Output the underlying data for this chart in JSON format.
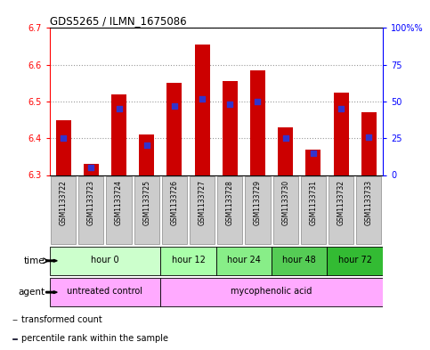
{
  "title": "GDS5265 / ILMN_1675086",
  "samples": [
    "GSM1133722",
    "GSM1133723",
    "GSM1133724",
    "GSM1133725",
    "GSM1133726",
    "GSM1133727",
    "GSM1133728",
    "GSM1133729",
    "GSM1133730",
    "GSM1133731",
    "GSM1133732",
    "GSM1133733"
  ],
  "transformed_counts": [
    6.45,
    6.33,
    6.52,
    6.41,
    6.55,
    6.655,
    6.555,
    6.585,
    6.43,
    6.37,
    6.525,
    6.47
  ],
  "percentile_ranks": [
    25,
    5,
    45,
    20,
    47,
    52,
    48,
    50,
    25,
    15,
    45,
    26
  ],
  "ylim_left": [
    6.3,
    6.7
  ],
  "ylim_right": [
    0,
    100
  ],
  "yticks_left": [
    6.3,
    6.4,
    6.5,
    6.6,
    6.7
  ],
  "yticks_right": [
    0,
    25,
    50,
    75,
    100
  ],
  "bar_color": "#cc0000",
  "blue_color": "#3333cc",
  "baseline": 6.3,
  "time_groups": [
    {
      "label": "hour 0",
      "start": 0,
      "end": 3,
      "color": "#ccffcc"
    },
    {
      "label": "hour 12",
      "start": 4,
      "end": 5,
      "color": "#aaffaa"
    },
    {
      "label": "hour 24",
      "start": 6,
      "end": 7,
      "color": "#88ee88"
    },
    {
      "label": "hour 48",
      "start": 8,
      "end": 9,
      "color": "#55cc55"
    },
    {
      "label": "hour 72",
      "start": 10,
      "end": 11,
      "color": "#33bb33"
    }
  ],
  "agent_groups": [
    {
      "label": "untreated control",
      "start": 0,
      "end": 3,
      "color": "#ffaaff"
    },
    {
      "label": "mycophenolic acid",
      "start": 4,
      "end": 11,
      "color": "#ffaaff"
    }
  ],
  "legend_items": [
    {
      "label": "transformed count",
      "color": "#cc0000"
    },
    {
      "label": "percentile rank within the sample",
      "color": "#3333cc"
    }
  ]
}
